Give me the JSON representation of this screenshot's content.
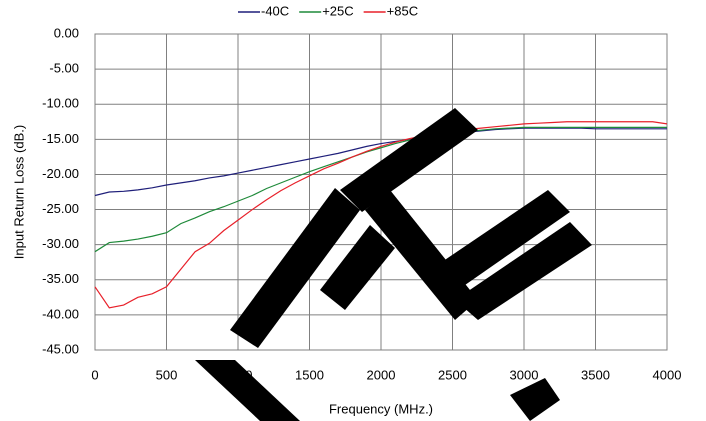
{
  "chart_data": {
    "type": "line",
    "x_label": "Frequency (MHz.)",
    "y_label": "Input Return Loss (dB.)",
    "x": [
      0,
      100,
      200,
      300,
      400,
      500,
      600,
      700,
      800,
      900,
      1000,
      1100,
      1200,
      1300,
      1400,
      1500,
      1600,
      1700,
      1800,
      1900,
      2000,
      2100,
      2200,
      2300,
      2400,
      2500,
      2600,
      2700,
      2800,
      2900,
      3000,
      3100,
      3200,
      3300,
      3400,
      3500,
      3600,
      3700,
      3800,
      3900,
      4000
    ],
    "series": [
      {
        "name": "-40C",
        "color": "#1f1f7a",
        "values": [
          -23,
          -22.5,
          -22.4,
          -22.2,
          -21.9,
          -21.5,
          -21.2,
          -20.9,
          -20.5,
          -20.2,
          -19.8,
          -19.4,
          -19,
          -18.6,
          -18.2,
          -17.8,
          -17.4,
          -17,
          -16.5,
          -16,
          -15.6,
          -15.3,
          -15,
          -14.7,
          -14.4,
          -14.2,
          -14,
          -13.8,
          -13.6,
          -13.5,
          -13.4,
          -13.4,
          -13.4,
          -13.4,
          -13.4,
          -13.5,
          -13.5,
          -13.5,
          -13.5,
          -13.5,
          -13.5
        ]
      },
      {
        "name": "+25C",
        "color": "#1f8a3a",
        "values": [
          -31,
          -29.7,
          -29.5,
          -29.2,
          -28.8,
          -28.3,
          -27,
          -26.2,
          -25.3,
          -24.6,
          -23.8,
          -23,
          -22,
          -21.2,
          -20.4,
          -19.6,
          -18.9,
          -18.2,
          -17.5,
          -16.8,
          -16.2,
          -15.6,
          -15.1,
          -14.7,
          -14.4,
          -14.1,
          -13.9,
          -13.7,
          -13.5,
          -13.4,
          -13.3,
          -13.3,
          -13.3,
          -13.3,
          -13.3,
          -13.3,
          -13.3,
          -13.3,
          -13.3,
          -13.3,
          -13.3
        ]
      },
      {
        "name": "+85C",
        "color": "#e8202a",
        "values": [
          -36,
          -39,
          -38.6,
          -37.5,
          -37,
          -36,
          -33.5,
          -31,
          -29.8,
          -28,
          -26.5,
          -25,
          -23.6,
          -22.3,
          -21.2,
          -20.2,
          -19.2,
          -18.4,
          -17.5,
          -16.7,
          -16,
          -15.4,
          -14.9,
          -14.5,
          -14.2,
          -13.9,
          -13.6,
          -13.4,
          -13.2,
          -13,
          -12.8,
          -12.7,
          -12.6,
          -12.5,
          -12.5,
          -12.5,
          -12.5,
          -12.5,
          -12.5,
          -12.5,
          -12.8
        ]
      }
    ],
    "xlim": [
      0,
      4000
    ],
    "xticks": [
      0,
      500,
      1000,
      1500,
      2000,
      2500,
      3000,
      3500,
      4000
    ],
    "ylim": [
      -45,
      0
    ],
    "yticks": [
      {
        "value": 0,
        "label": "0.00"
      },
      {
        "value": -5,
        "label": "-5.00"
      },
      {
        "value": -10,
        "label": "-10.00"
      },
      {
        "value": -15,
        "label": "-15.00"
      },
      {
        "value": -20,
        "label": "-20.00"
      },
      {
        "value": -25,
        "label": "-25.00"
      },
      {
        "value": -30,
        "label": "-30.00"
      },
      {
        "value": -35,
        "label": "-35.00"
      },
      {
        "value": -40,
        "label": "-40.00"
      },
      {
        "value": -45,
        "label": "-45.00"
      }
    ],
    "grid": true,
    "legend": "top"
  }
}
